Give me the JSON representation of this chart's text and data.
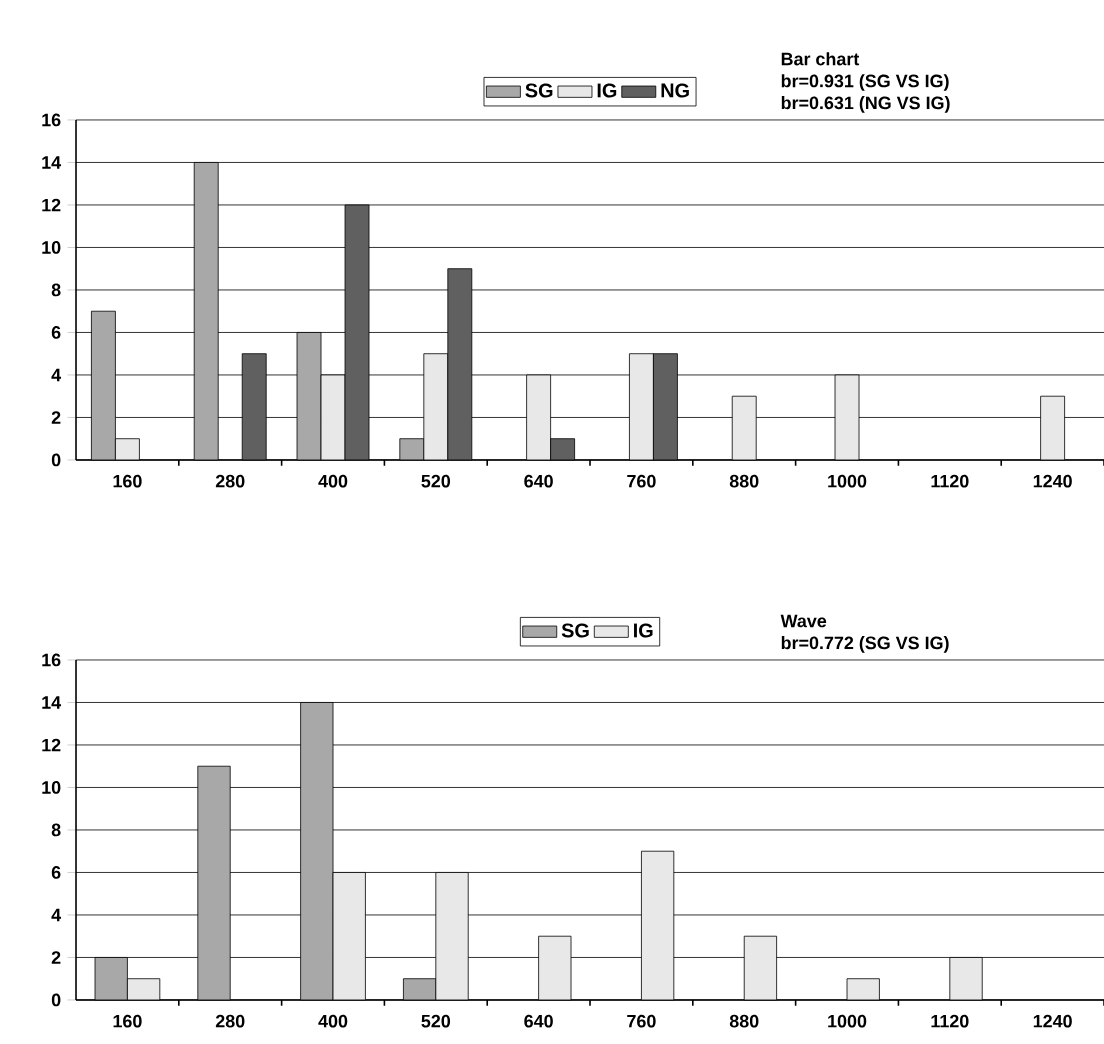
{
  "chart_data": [
    {
      "type": "bar",
      "title": "Bar chart",
      "annotations": [
        "br=0.931 (SG VS IG)",
        "br=0.631 (NG VS IG)"
      ],
      "categories": [
        "160",
        "280",
        "400",
        "520",
        "640",
        "760",
        "880",
        "1000",
        "1120",
        "1240"
      ],
      "series": [
        {
          "name": "SG",
          "color": "#a8a8a8",
          "values": [
            7,
            14,
            6,
            1,
            null,
            null,
            null,
            null,
            null,
            null
          ]
        },
        {
          "name": "IG",
          "color": "#e8e8e8",
          "values": [
            1,
            null,
            4,
            5,
            4,
            5,
            3,
            4,
            null,
            3
          ]
        },
        {
          "name": "NG",
          "color": "#606060",
          "values": [
            null,
            5,
            12,
            9,
            1,
            5,
            null,
            null,
            null,
            null
          ]
        }
      ],
      "ylim": [
        0,
        16
      ],
      "yticks": [
        0,
        2,
        4,
        6,
        8,
        10,
        12,
        14,
        16
      ],
      "grid": "y",
      "legend": "top"
    },
    {
      "type": "bar",
      "title": "Wave",
      "annotations": [
        "br=0.772 (SG VS IG)"
      ],
      "categories": [
        "160",
        "280",
        "400",
        "520",
        "640",
        "760",
        "880",
        "1000",
        "1120",
        "1240"
      ],
      "series": [
        {
          "name": "SG",
          "color": "#a8a8a8",
          "values": [
            2,
            11,
            14,
            1,
            null,
            null,
            null,
            null,
            null,
            null
          ]
        },
        {
          "name": "IG",
          "color": "#e8e8e8",
          "values": [
            1,
            null,
            6,
            6,
            3,
            7,
            3,
            1,
            2,
            null
          ]
        }
      ],
      "ylim": [
        0,
        16
      ],
      "yticks": [
        0,
        2,
        4,
        6,
        8,
        10,
        12,
        14,
        16
      ],
      "grid": "y",
      "legend": "top"
    }
  ]
}
